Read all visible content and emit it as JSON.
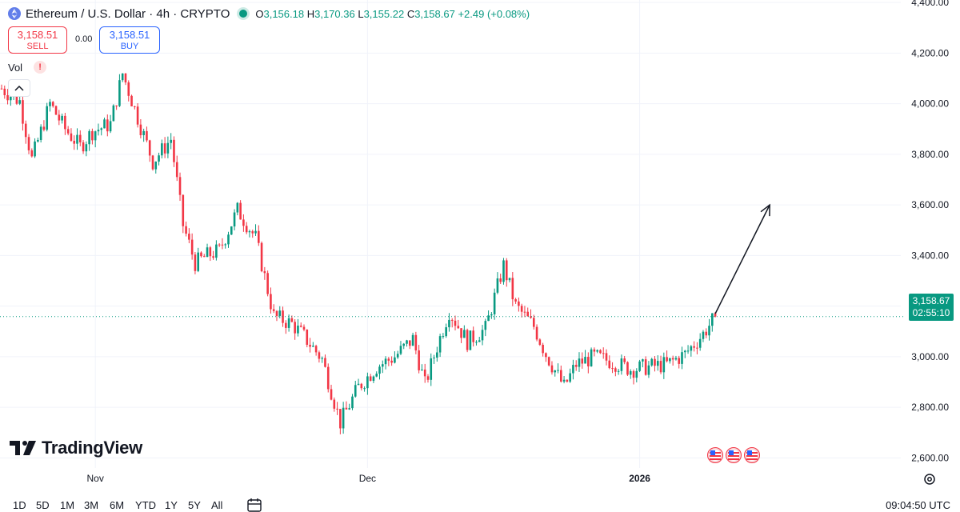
{
  "header": {
    "symbol_title": "Ethereum / U.S. Dollar · 4h · CRYPTO",
    "ohlc": {
      "o_label": "O",
      "o_value": "3,156.18",
      "h_label": "H",
      "h_value": "3,170.36",
      "l_label": "L",
      "l_value": "3,155.22",
      "c_label": "C",
      "c_value": "3,158.67",
      "change": "+2.49 (+0.08%)"
    }
  },
  "trade": {
    "sell_price": "3,158.51",
    "sell_label": "SELL",
    "spread": "0.00",
    "buy_price": "3,158.51",
    "buy_label": "BUY"
  },
  "indicator": {
    "vol_label": "Vol",
    "warning": "!"
  },
  "logo": {
    "text": "TradingView"
  },
  "price_tag": {
    "price": "3,158.67",
    "countdown": "02:55:10"
  },
  "bottom_bar": {
    "ranges": [
      "1D",
      "5D",
      "1M",
      "3M",
      "6M",
      "YTD",
      "1Y",
      "5Y",
      "All"
    ],
    "time": "09:04:50 UTC"
  },
  "colors": {
    "up": "#089981",
    "down": "#f23645",
    "accent": "#2962ff",
    "grid": "#f0f3fa"
  },
  "icons": [
    "ethereum-icon",
    "live-dot-icon",
    "warning-icon",
    "chevron-up-icon",
    "tradingview-logo-icon",
    "calendar-icon",
    "settings-icon",
    "us-flag-icon"
  ],
  "chart_data": {
    "type": "candlestick",
    "timeframe": "4h",
    "y_ticks": [
      4400,
      4200,
      4000,
      3800,
      3600,
      3400,
      3200,
      3000,
      2800,
      2600
    ],
    "y_tick_labels": [
      "4,400.00",
      "4,200.00",
      "4,000.00",
      "3,800.00",
      "3,600.00",
      "3,400.00",
      "3,200.00",
      "3,000.00",
      "2,800.00",
      "2,600.00"
    ],
    "ylim": [
      2560,
      4410
    ],
    "x_labels": [
      "Nov",
      "Dec",
      "2026"
    ],
    "x_label_index": [
      31,
      121,
      211
    ],
    "last_price": 3158.67,
    "price_path_anchors": [
      [
        0,
        4060
      ],
      [
        6,
        4010
      ],
      [
        10,
        3780
      ],
      [
        16,
        4000
      ],
      [
        21,
        3900
      ],
      [
        26,
        3830
      ],
      [
        30,
        3890
      ],
      [
        36,
        3920
      ],
      [
        40,
        4120
      ],
      [
        44,
        3980
      ],
      [
        50,
        3770
      ],
      [
        56,
        3860
      ],
      [
        60,
        3520
      ],
      [
        64,
        3370
      ],
      [
        68,
        3400
      ],
      [
        72,
        3420
      ],
      [
        78,
        3580
      ],
      [
        84,
        3470
      ],
      [
        90,
        3160
      ],
      [
        96,
        3130
      ],
      [
        100,
        3080
      ],
      [
        106,
        2990
      ],
      [
        112,
        2740
      ],
      [
        118,
        2880
      ],
      [
        124,
        2960
      ],
      [
        130,
        3000
      ],
      [
        136,
        3070
      ],
      [
        140,
        2890
      ],
      [
        144,
        3040
      ],
      [
        148,
        3180
      ],
      [
        154,
        3060
      ],
      [
        160,
        3110
      ],
      [
        166,
        3360
      ],
      [
        170,
        3200
      ],
      [
        176,
        3120
      ],
      [
        180,
        3010
      ],
      [
        186,
        2880
      ],
      [
        190,
        2970
      ],
      [
        196,
        3000
      ],
      [
        202,
        2980
      ],
      [
        208,
        2950
      ],
      [
        214,
        2960
      ],
      [
        220,
        2970
      ],
      [
        226,
        3010
      ],
      [
        232,
        3090
      ],
      [
        236,
        3158.67
      ]
    ],
    "candles": [],
    "annotations": [
      {
        "type": "arrow",
        "from": [
          236,
          3170
        ],
        "to": [
          254,
          3600
        ]
      }
    ],
    "event_markers": 3
  }
}
